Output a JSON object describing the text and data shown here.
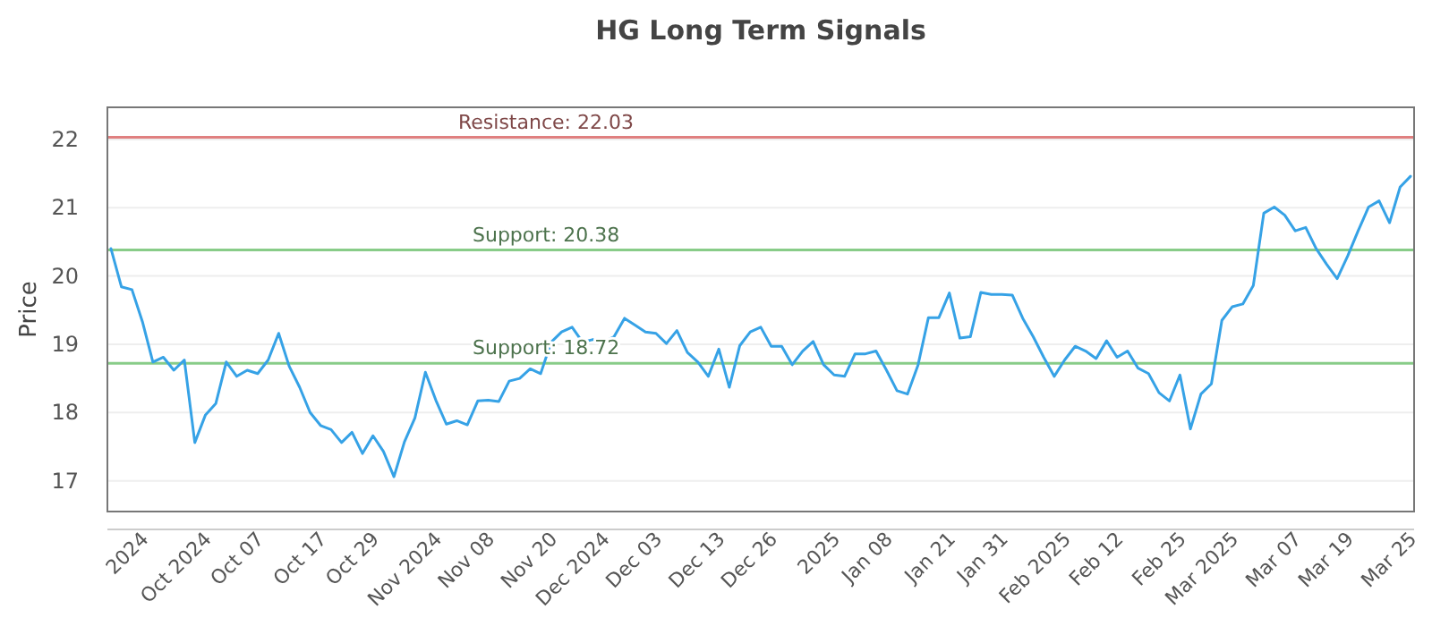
{
  "chart_data": {
    "type": "line",
    "title": "HG Long Term Signals",
    "ylabel": "Price",
    "categories": [
      null,
      null,
      null,
      "2024",
      null,
      null,
      null,
      null,
      null,
      "Oct 2024",
      null,
      null,
      null,
      null,
      "Oct 07",
      null,
      null,
      null,
      null,
      null,
      "Oct 17",
      null,
      null,
      null,
      null,
      "Oct 29",
      null,
      null,
      null,
      null,
      null,
      "Nov 2024",
      null,
      null,
      null,
      null,
      "Nov 08",
      null,
      null,
      null,
      null,
      null,
      "Nov 20",
      null,
      null,
      null,
      null,
      "Dec 2024",
      null,
      null,
      null,
      null,
      "Dec 03",
      null,
      null,
      null,
      null,
      null,
      "Dec 13",
      null,
      null,
      null,
      null,
      "Dec 26",
      null,
      null,
      null,
      null,
      null,
      "2025",
      null,
      null,
      null,
      null,
      "Jan 08",
      null,
      null,
      null,
      null,
      null,
      "Jan 21",
      null,
      null,
      null,
      null,
      "Jan 31",
      null,
      null,
      null,
      null,
      null,
      "Feb 2025",
      null,
      null,
      null,
      null,
      "Feb 12",
      null,
      null,
      null,
      null,
      null,
      "Feb 25",
      null,
      null,
      null,
      null,
      "Mar 2025",
      null,
      null,
      null,
      null,
      null,
      "Mar 07",
      null,
      null,
      null,
      null,
      "Mar 19",
      null,
      null,
      null,
      null,
      null,
      "Mar 25"
    ],
    "series": [
      {
        "color": "#36a2e6",
        "values": [
          20.4,
          19.84,
          19.8,
          19.33,
          18.74,
          18.81,
          18.62,
          18.77,
          17.56,
          17.96,
          18.13,
          18.74,
          18.53,
          18.62,
          18.57,
          18.77,
          19.16,
          18.68,
          18.37,
          18.0,
          17.81,
          17.75,
          17.56,
          17.71,
          17.4,
          17.66,
          17.43,
          17.06,
          17.57,
          17.92,
          18.59,
          18.18,
          17.83,
          17.88,
          17.82,
          18.17,
          18.18,
          18.16,
          18.46,
          18.5,
          18.64,
          18.57,
          19.03,
          19.18,
          19.25,
          19.03,
          19.07,
          19.03,
          19.11,
          19.38,
          19.28,
          19.18,
          19.16,
          19.01,
          19.2,
          18.88,
          18.74,
          18.53,
          18.93,
          18.37,
          18.98,
          19.18,
          19.25,
          18.97,
          18.97,
          18.7,
          18.9,
          19.04,
          18.7,
          18.55,
          18.53,
          18.86,
          18.86,
          18.9,
          18.62,
          18.32,
          18.27,
          18.69,
          19.39,
          19.39,
          19.75,
          19.09,
          19.11,
          19.76,
          19.73,
          19.73,
          19.72,
          19.38,
          19.11,
          18.81,
          18.53,
          18.77,
          18.97,
          18.9,
          18.79,
          19.05,
          18.81,
          18.9,
          18.65,
          18.57,
          18.29,
          18.17,
          18.55,
          17.76,
          18.27,
          18.42,
          19.35,
          19.55,
          19.59,
          19.86,
          20.92,
          21.01,
          20.89,
          20.66,
          20.71,
          20.4,
          20.17,
          19.96,
          20.29,
          20.66,
          21.01,
          21.1,
          20.78,
          21.3,
          21.46
        ]
      }
    ],
    "ylim": [
      16.55,
      22.47
    ],
    "yticks": [
      17,
      18,
      19,
      20,
      21,
      22
    ],
    "grid": "y",
    "ref_lines": [
      {
        "axis": "y",
        "value": 22.03,
        "label": "Resistance: 22.03",
        "color": "#e08080"
      },
      {
        "axis": "y",
        "value": 20.38,
        "label": "Support: 20.38",
        "color": "#88cc88"
      },
      {
        "axis": "y",
        "value": 18.72,
        "label": "Support: 18.72",
        "color": "#88cc88"
      }
    ]
  }
}
